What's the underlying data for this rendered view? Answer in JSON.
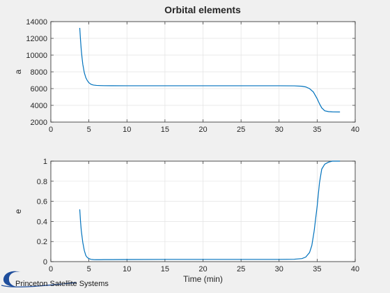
{
  "figure": {
    "title": "Orbital elements",
    "logo_text": "Princeton Satellite Systems"
  },
  "colors": {
    "series": "#0072bd",
    "background": "#f0f0f0",
    "logo": "#1f4e9c"
  },
  "chart_data": [
    {
      "type": "line",
      "title": "Orbital elements",
      "xlabel": "",
      "ylabel": "a",
      "xlim": [
        0,
        40
      ],
      "ylim": [
        2000,
        14000
      ],
      "xticks": [
        0,
        5,
        10,
        15,
        20,
        25,
        30,
        35,
        40
      ],
      "yticks": [
        2000,
        4000,
        6000,
        8000,
        10000,
        12000,
        14000
      ],
      "grid": true,
      "series": [
        {
          "x": [
            3.8,
            3.9,
            4.0,
            4.1,
            4.2,
            4.4,
            4.6,
            4.8,
            5.0,
            5.3,
            5.6,
            6.0,
            6.5,
            7.0,
            8.0,
            10,
            15,
            20,
            25,
            30,
            32,
            33,
            33.5,
            34,
            34.5,
            35,
            35.3,
            35.6,
            36.0,
            36.5,
            37,
            38
          ],
          "y": [
            13250,
            11800,
            10600,
            9700,
            8900,
            7900,
            7300,
            6950,
            6700,
            6500,
            6420,
            6380,
            6360,
            6350,
            6345,
            6340,
            6340,
            6340,
            6340,
            6340,
            6330,
            6280,
            6200,
            6000,
            5600,
            4800,
            4200,
            3700,
            3350,
            3250,
            3220,
            3210
          ]
        }
      ]
    },
    {
      "type": "line",
      "xlabel": "Time (min)",
      "ylabel": "e",
      "xlim": [
        0,
        40
      ],
      "ylim": [
        0,
        1
      ],
      "xticks": [
        0,
        5,
        10,
        15,
        20,
        25,
        30,
        35,
        40
      ],
      "yticks": [
        0,
        0.2,
        0.4,
        0.6,
        0.8,
        1
      ],
      "grid": true,
      "series": [
        {
          "x": [
            3.8,
            3.9,
            4.0,
            4.2,
            4.4,
            4.6,
            4.8,
            5.0,
            5.3,
            5.6,
            6.0,
            6.5,
            7.0,
            8.0,
            10,
            15,
            20,
            25,
            30,
            32,
            33,
            33.5,
            34,
            34.3,
            34.6,
            35.0,
            35.3,
            35.6,
            36.0,
            36.5,
            37,
            38
          ],
          "y": [
            0.52,
            0.4,
            0.31,
            0.19,
            0.11,
            0.06,
            0.04,
            0.03,
            0.022,
            0.02,
            0.019,
            0.019,
            0.02,
            0.02,
            0.021,
            0.022,
            0.022,
            0.022,
            0.022,
            0.024,
            0.03,
            0.045,
            0.09,
            0.16,
            0.3,
            0.55,
            0.78,
            0.92,
            0.97,
            0.99,
            1.0,
            1.0
          ]
        }
      ]
    }
  ]
}
